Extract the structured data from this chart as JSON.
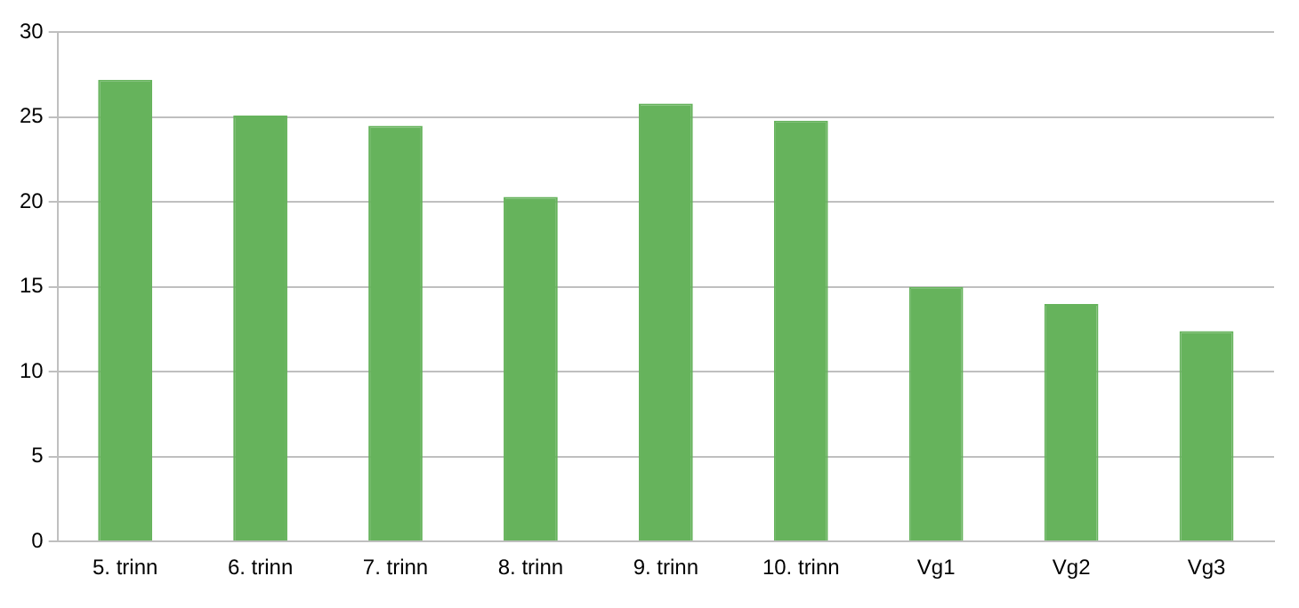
{
  "chart_data": {
    "type": "bar",
    "categories": [
      "5. trinn",
      "6. trinn",
      "7. trinn",
      "8. trinn",
      "9. trinn",
      "10. trinn",
      "Vg1",
      "Vg2",
      "Vg3"
    ],
    "values": [
      27.2,
      25.1,
      24.5,
      20.3,
      25.8,
      24.8,
      15.0,
      14.0,
      12.4
    ],
    "color": "#66b35c",
    "ylim": [
      0,
      30
    ],
    "yticks": [
      0,
      5,
      10,
      15,
      20,
      25,
      30
    ],
    "grid": "y",
    "legend": false
  }
}
